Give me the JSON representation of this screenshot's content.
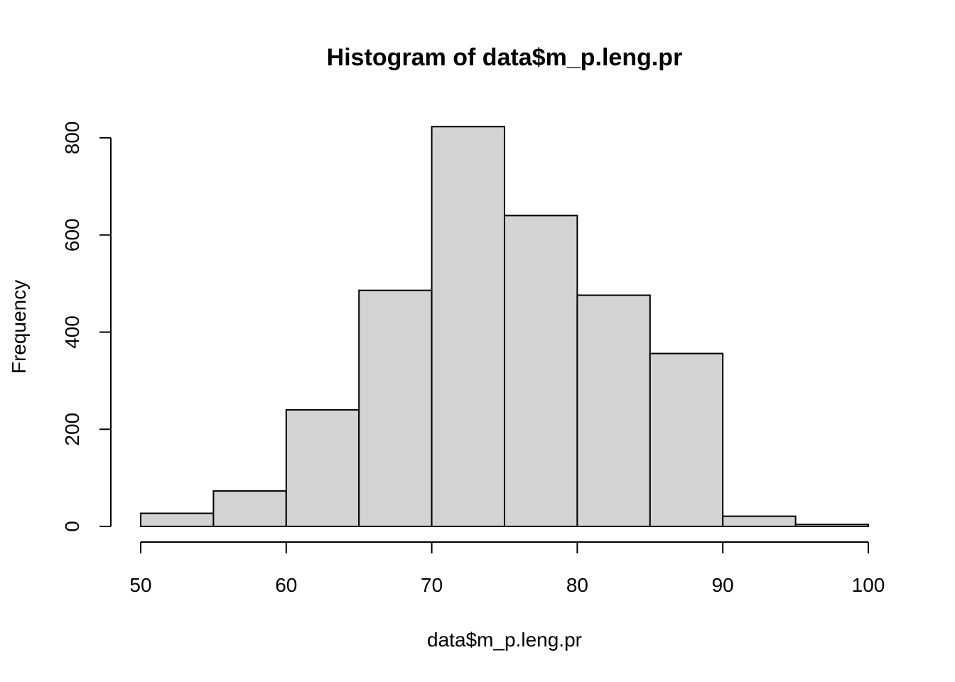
{
  "chart_data": {
    "type": "bar",
    "title": "Histogram of data$m_p.leng.pr",
    "xlabel": "data$m_p.leng.pr",
    "ylabel": "Frequency",
    "bins": [
      {
        "start": 50,
        "end": 55,
        "count": 27
      },
      {
        "start": 55,
        "end": 60,
        "count": 73
      },
      {
        "start": 60,
        "end": 65,
        "count": 240
      },
      {
        "start": 65,
        "end": 70,
        "count": 486
      },
      {
        "start": 70,
        "end": 75,
        "count": 823
      },
      {
        "start": 75,
        "end": 80,
        "count": 640
      },
      {
        "start": 80,
        "end": 85,
        "count": 476
      },
      {
        "start": 85,
        "end": 90,
        "count": 356
      },
      {
        "start": 90,
        "end": 95,
        "count": 21
      },
      {
        "start": 95,
        "end": 100,
        "count": 4
      }
    ],
    "xlim": [
      50,
      100
    ],
    "ylim": [
      0,
      823
    ],
    "xticks": [
      "50",
      "60",
      "70",
      "80",
      "90",
      "100"
    ],
    "yticks": [
      "0",
      "200",
      "400",
      "600",
      "800"
    ],
    "bar_fill": "#d3d3d3",
    "grid": false,
    "legend": "none"
  }
}
